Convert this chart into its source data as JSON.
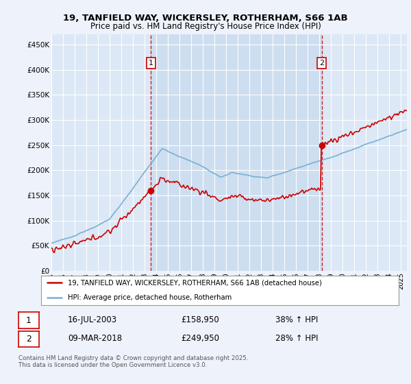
{
  "title_line1": "19, TANFIELD WAY, WICKERSLEY, ROTHERHAM, S66 1AB",
  "title_line2": "Price paid vs. HM Land Registry's House Price Index (HPI)",
  "background_color": "#eef2fa",
  "plot_bg_color": "#dce8f5",
  "plot_bg_highlight": "#ccddf0",
  "grid_color": "#ffffff",
  "red_color": "#cc0000",
  "blue_color": "#7aafd4",
  "marker1_x": 2003.54,
  "marker1_y": 158950,
  "marker2_x": 2018.19,
  "marker2_y": 249950,
  "marker1_label": "16-JUL-2003",
  "marker1_price": "£158,950",
  "marker1_hpi": "38% ↑ HPI",
  "marker2_label": "09-MAR-2018",
  "marker2_price": "£249,950",
  "marker2_hpi": "28% ↑ HPI",
  "legend_line1": "19, TANFIELD WAY, WICKERSLEY, ROTHERHAM, S66 1AB (detached house)",
  "legend_line2": "HPI: Average price, detached house, Rotherham",
  "footer": "Contains HM Land Registry data © Crown copyright and database right 2025.\nThis data is licensed under the Open Government Licence v3.0.",
  "ylim": [
    0,
    470000
  ],
  "xlim_start": 1995.0,
  "xlim_end": 2025.5,
  "seed": 12345
}
